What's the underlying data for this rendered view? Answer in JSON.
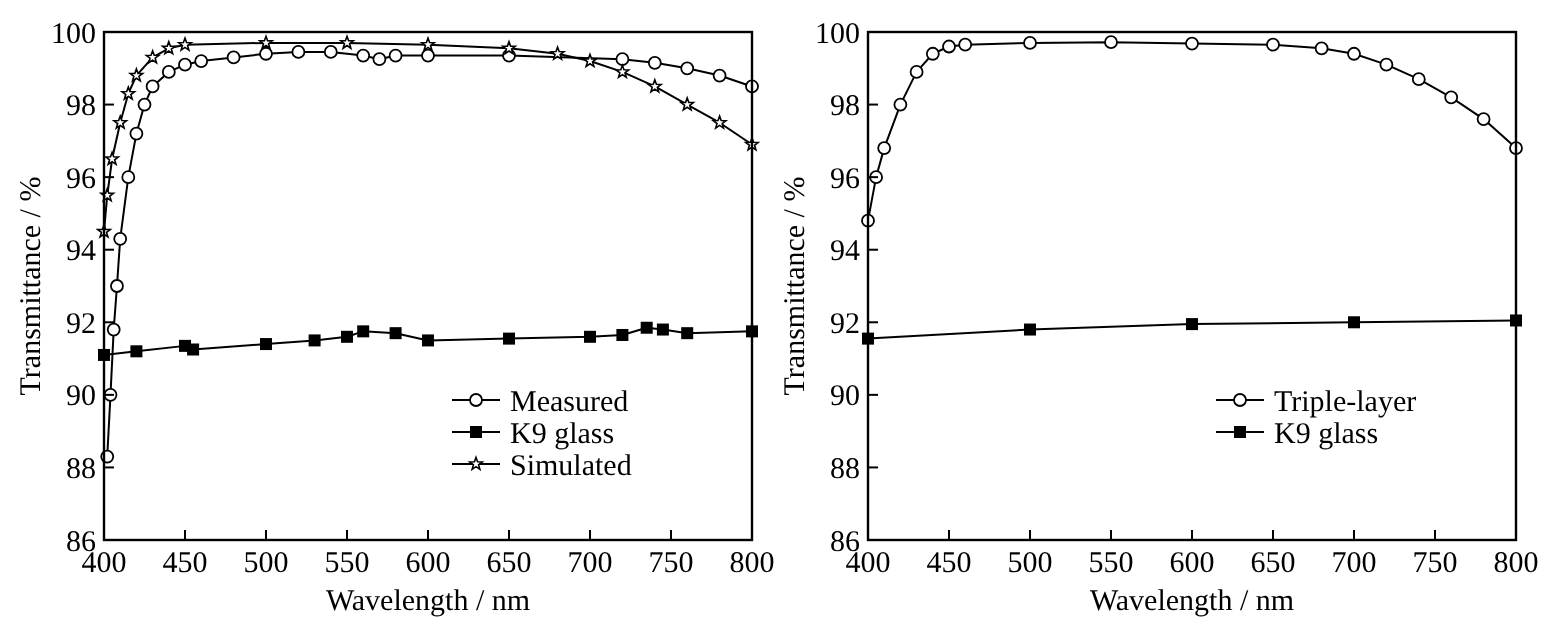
{
  "chart_data": [
    {
      "type": "line",
      "xlabel": "Wavelength / nm",
      "ylabel": "Transmittance / %",
      "xlim": [
        400,
        800
      ],
      "ylim": [
        86,
        100
      ],
      "xticks": [
        400,
        450,
        500,
        550,
        600,
        650,
        700,
        750,
        800
      ],
      "yticks": [
        86,
        88,
        90,
        92,
        94,
        96,
        98,
        100
      ],
      "grid": false,
      "legend": "bottom right",
      "line_style": "solid",
      "series": [
        {
          "name": "Measured",
          "color": "#000000",
          "marker": "circle",
          "x": [
            402,
            404,
            406,
            408,
            410,
            415,
            420,
            425,
            430,
            440,
            450,
            460,
            480,
            500,
            520,
            540,
            560,
            570,
            580,
            600,
            650,
            720,
            740,
            760,
            780,
            800
          ],
          "values": [
            88.3,
            90,
            91.8,
            93,
            94.3,
            96,
            97.2,
            98,
            98.5,
            98.9,
            99.1,
            99.2,
            99.3,
            99.4,
            99.45,
            99.45,
            99.35,
            99.25,
            99.35,
            99.35,
            99.35,
            99.25,
            99.15,
            99,
            98.8,
            98.5
          ]
        },
        {
          "name": "K9 glass",
          "color": "#000000",
          "marker": "square",
          "x": [
            400,
            420,
            450,
            455,
            500,
            530,
            550,
            560,
            580,
            600,
            650,
            700,
            720,
            735,
            745,
            760,
            800
          ],
          "values": [
            91.1,
            91.2,
            91.35,
            91.25,
            91.4,
            91.5,
            91.6,
            91.75,
            91.7,
            91.5,
            91.55,
            91.6,
            91.65,
            91.85,
            91.8,
            91.7,
            91.75
          ]
        },
        {
          "name": "Simulated",
          "color": "#000000",
          "marker": "star",
          "x": [
            400,
            402,
            405,
            410,
            415,
            420,
            430,
            440,
            450,
            500,
            550,
            600,
            650,
            680,
            700,
            720,
            740,
            760,
            780,
            800
          ],
          "values": [
            94.5,
            95.5,
            96.5,
            97.5,
            98.3,
            98.8,
            99.3,
            99.55,
            99.65,
            99.7,
            99.7,
            99.65,
            99.55,
            99.4,
            99.2,
            98.9,
            98.5,
            98,
            97.5,
            96.9
          ]
        }
      ]
    },
    {
      "type": "line",
      "xlabel": "Wavelength / nm",
      "ylabel": "Transmittance / %",
      "xlim": [
        400,
        800
      ],
      "ylim": [
        86,
        100
      ],
      "xticks": [
        400,
        450,
        500,
        550,
        600,
        650,
        700,
        750,
        800
      ],
      "yticks": [
        86,
        88,
        90,
        92,
        94,
        96,
        98,
        100
      ],
      "grid": false,
      "legend": "bottom right",
      "line_style": "solid",
      "series": [
        {
          "name": "Triple-layer",
          "color": "#000000",
          "marker": "circle",
          "x": [
            400,
            405,
            410,
            420,
            430,
            440,
            450,
            460,
            500,
            550,
            600,
            650,
            680,
            700,
            720,
            740,
            760,
            780,
            800
          ],
          "values": [
            94.8,
            96,
            96.8,
            98,
            98.9,
            99.4,
            99.6,
            99.65,
            99.7,
            99.72,
            99.68,
            99.65,
            99.55,
            99.4,
            99.1,
            98.7,
            98.2,
            97.6,
            96.8
          ]
        },
        {
          "name": "K9 glass",
          "color": "#000000",
          "marker": "square",
          "x": [
            400,
            500,
            600,
            700,
            800
          ],
          "values": [
            91.55,
            91.8,
            91.95,
            92,
            92.05
          ]
        }
      ]
    }
  ]
}
